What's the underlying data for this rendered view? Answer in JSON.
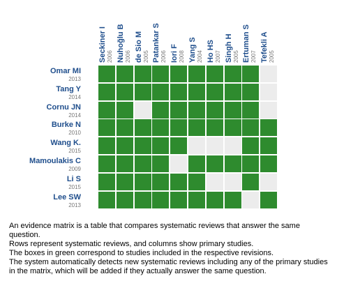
{
  "matrix": {
    "columns": [
      {
        "name": "Seckiner I",
        "year": "2006"
      },
      {
        "name": "Nuhoğlu B",
        "year": "2006"
      },
      {
        "name": "de Sio M",
        "year": "2005"
      },
      {
        "name": "Patankar S",
        "year": "2006"
      },
      {
        "name": "Iori F",
        "year": "2008"
      },
      {
        "name": "Yang S",
        "year": "2004"
      },
      {
        "name": "Ho HS",
        "year": "2007"
      },
      {
        "name": "Singh H",
        "year": "2005"
      },
      {
        "name": "Ertuman S",
        "year": "2007"
      },
      {
        "name": "Tefekli A",
        "year": "2005"
      }
    ],
    "rows": [
      {
        "name": "Omar MI",
        "year": "2013",
        "cells": [
          1,
          1,
          1,
          1,
          1,
          1,
          1,
          1,
          1,
          0
        ]
      },
      {
        "name": "Tang Y",
        "year": "2014",
        "cells": [
          1,
          1,
          1,
          1,
          1,
          1,
          1,
          1,
          1,
          0
        ]
      },
      {
        "name": "Cornu JN",
        "year": "2014",
        "cells": [
          1,
          1,
          0,
          1,
          1,
          1,
          1,
          1,
          1,
          0
        ]
      },
      {
        "name": "Burke N",
        "year": "2010",
        "cells": [
          1,
          1,
          1,
          1,
          1,
          1,
          1,
          1,
          1,
          1
        ]
      },
      {
        "name": "Wang K.",
        "year": "2015",
        "cells": [
          1,
          1,
          1,
          1,
          1,
          0,
          0,
          0,
          1,
          1
        ]
      },
      {
        "name": "Mamoulakis C",
        "year": "2009",
        "cells": [
          1,
          1,
          1,
          1,
          0,
          1,
          1,
          1,
          1,
          1
        ]
      },
      {
        "name": "Li S",
        "year": "2015",
        "cells": [
          1,
          1,
          1,
          1,
          1,
          1,
          0,
          0,
          1,
          0
        ]
      },
      {
        "name": "Lee SW",
        "year": "2013",
        "cells": [
          1,
          1,
          1,
          1,
          1,
          1,
          1,
          1,
          0,
          1
        ]
      }
    ],
    "colors": {
      "included": "#2e8b2e",
      "not_included": "#ececec",
      "label": "#1f4e8c",
      "year": "#777777"
    }
  },
  "description": [
    "An evidence matrix is a table that compares systematic reviews that answer the same question.",
    "Rows represent systematic reviews, and columns show primary studies.",
    "The boxes in green correspond to studies included in the respective revisions.",
    "The system automatically detects new systematic reviews including any of the primary studies in the matrix, which will be added if they actually answer the same question."
  ]
}
